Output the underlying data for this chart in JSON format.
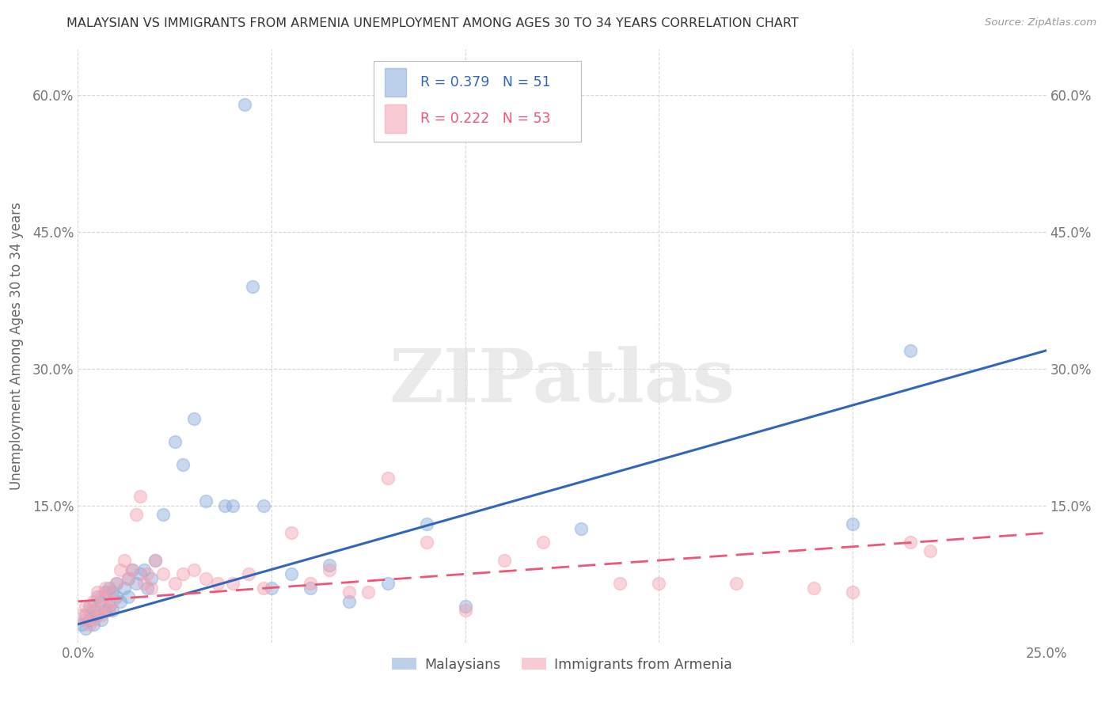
{
  "title": "MALAYSIAN VS IMMIGRANTS FROM ARMENIA UNEMPLOYMENT AMONG AGES 30 TO 34 YEARS CORRELATION CHART",
  "source": "Source: ZipAtlas.com",
  "ylabel": "Unemployment Among Ages 30 to 34 years",
  "legend_label1": "Malaysians",
  "legend_label2": "Immigrants from Armenia",
  "R1": 0.379,
  "N1": 51,
  "R2": 0.222,
  "N2": 53,
  "blue_color": "#85AADB",
  "pink_color": "#F4A0B0",
  "blue_line_color": "#3366BB",
  "pink_line_color": "#EE5577",
  "background_color": "#FFFFFF",
  "grid_color": "#CCCCCC",
  "watermark": "ZIPatlas",
  "xlim": [
    0.0,
    0.25
  ],
  "ylim": [
    0.0,
    0.65
  ],
  "x_tick_positions": [
    0.0,
    0.05,
    0.1,
    0.15,
    0.2,
    0.25
  ],
  "x_tick_labels": [
    "0.0%",
    "",
    "",
    "",
    "",
    "25.0%"
  ],
  "y_tick_positions": [
    0.0,
    0.15,
    0.3,
    0.45,
    0.6
  ],
  "y_tick_labels_left": [
    "",
    "15.0%",
    "30.0%",
    "45.0%",
    "60.0%"
  ],
  "y_tick_labels_right": [
    "",
    "15.0%",
    "30.0%",
    "45.0%",
    "60.0%"
  ],
  "mal_x": [
    0.001,
    0.002,
    0.002,
    0.003,
    0.003,
    0.004,
    0.004,
    0.005,
    0.005,
    0.006,
    0.006,
    0.007,
    0.007,
    0.008,
    0.008,
    0.009,
    0.009,
    0.01,
    0.01,
    0.011,
    0.012,
    0.013,
    0.013,
    0.014,
    0.015,
    0.016,
    0.017,
    0.018,
    0.019,
    0.02,
    0.022,
    0.025,
    0.027,
    0.03,
    0.033,
    0.038,
    0.04,
    0.043,
    0.045,
    0.048,
    0.05,
    0.055,
    0.06,
    0.065,
    0.07,
    0.08,
    0.09,
    0.1,
    0.13,
    0.2,
    0.215
  ],
  "mal_y": [
    0.02,
    0.015,
    0.03,
    0.025,
    0.04,
    0.02,
    0.035,
    0.03,
    0.05,
    0.025,
    0.045,
    0.035,
    0.055,
    0.04,
    0.06,
    0.035,
    0.055,
    0.05,
    0.065,
    0.045,
    0.06,
    0.07,
    0.05,
    0.08,
    0.065,
    0.075,
    0.08,
    0.06,
    0.07,
    0.09,
    0.14,
    0.22,
    0.195,
    0.245,
    0.155,
    0.15,
    0.15,
    0.59,
    0.39,
    0.15,
    0.06,
    0.075,
    0.06,
    0.085,
    0.045,
    0.065,
    0.13,
    0.04,
    0.125,
    0.13,
    0.32
  ],
  "arm_x": [
    0.001,
    0.002,
    0.002,
    0.003,
    0.003,
    0.004,
    0.004,
    0.005,
    0.005,
    0.006,
    0.006,
    0.007,
    0.007,
    0.008,
    0.008,
    0.009,
    0.01,
    0.011,
    0.012,
    0.013,
    0.014,
    0.015,
    0.016,
    0.017,
    0.018,
    0.019,
    0.02,
    0.022,
    0.025,
    0.027,
    0.03,
    0.033,
    0.036,
    0.04,
    0.044,
    0.048,
    0.055,
    0.06,
    0.065,
    0.07,
    0.075,
    0.08,
    0.09,
    0.1,
    0.11,
    0.12,
    0.14,
    0.15,
    0.17,
    0.19,
    0.2,
    0.215,
    0.22
  ],
  "arm_y": [
    0.03,
    0.025,
    0.04,
    0.02,
    0.035,
    0.025,
    0.045,
    0.035,
    0.055,
    0.03,
    0.05,
    0.04,
    0.06,
    0.035,
    0.055,
    0.045,
    0.065,
    0.08,
    0.09,
    0.07,
    0.08,
    0.14,
    0.16,
    0.065,
    0.075,
    0.06,
    0.09,
    0.075,
    0.065,
    0.075,
    0.08,
    0.07,
    0.065,
    0.065,
    0.075,
    0.06,
    0.12,
    0.065,
    0.08,
    0.055,
    0.055,
    0.18,
    0.11,
    0.035,
    0.09,
    0.11,
    0.065,
    0.065,
    0.065,
    0.06,
    0.055,
    0.11,
    0.1
  ]
}
